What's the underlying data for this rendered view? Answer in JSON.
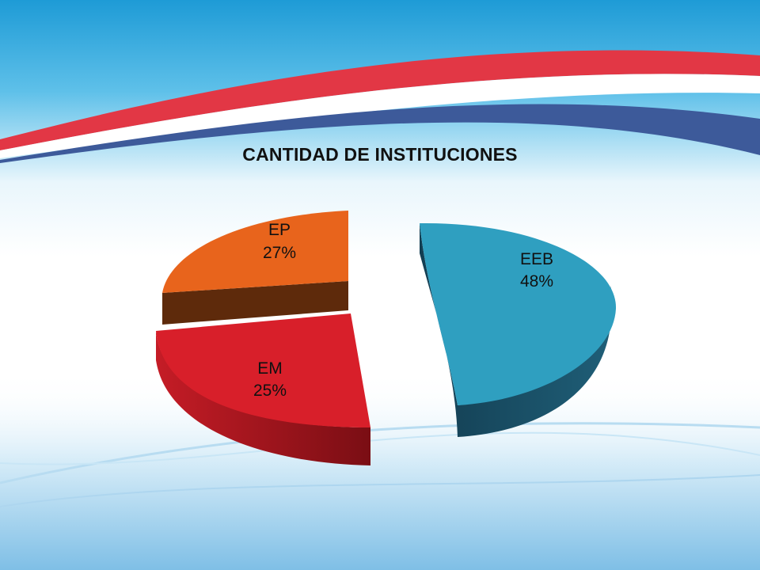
{
  "chart_data": {
    "type": "pie",
    "title": "CANTIDAD DE INSTITUCIONES",
    "slices": [
      {
        "label": "EEB",
        "percent_label": "48%",
        "value": 48,
        "color": "#2f9fc0"
      },
      {
        "label": "EM",
        "percent_label": "25%",
        "value": 25,
        "color": "#d81f2a"
      },
      {
        "label": "EP",
        "percent_label": "27%",
        "value": 27,
        "color": "#e8641c"
      }
    ],
    "legend": "none",
    "exploded": true,
    "three_d": true
  },
  "theme": {
    "background_top": "#2ba6dc",
    "stripe_red": "#e23745",
    "stripe_blue": "#3d5a9a"
  }
}
